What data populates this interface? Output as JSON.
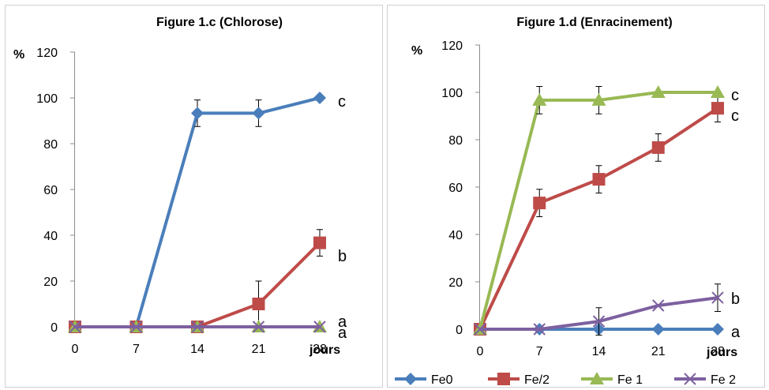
{
  "colors": {
    "Fe0": "#4a7ebb",
    "Fe/2": "#be4b48",
    "Fe 1": "#98b954",
    "Fe 2": "#7d60a0"
  },
  "legend": [
    {
      "name": "Fe0",
      "marker": "diamond"
    },
    {
      "name": "Fe/2",
      "marker": "square"
    },
    {
      "name": "Fe 1",
      "marker": "triangle"
    },
    {
      "name": "Fe 2",
      "marker": "x"
    }
  ],
  "chart_data": [
    {
      "type": "line",
      "title": "Figure 1.c (Chlorose)",
      "ylabel": "%",
      "xlabel": "jours",
      "x": [
        0,
        7,
        14,
        21,
        28
      ],
      "x_ticks": [
        "0",
        "7",
        "14",
        "21",
        "28"
      ],
      "ylim": [
        0,
        120
      ],
      "y_ticks": [
        "0",
        "20",
        "40",
        "60",
        "80",
        "100",
        "120"
      ],
      "grid": false,
      "series": [
        {
          "name": "Fe0",
          "values": [
            0,
            0,
            93.3,
            93.3,
            100
          ],
          "errors": [
            0,
            0,
            5.8,
            5.8,
            0
          ]
        },
        {
          "name": "Fe/2",
          "values": [
            0,
            0,
            0,
            10,
            36.7
          ],
          "errors": [
            0,
            0,
            0,
            10,
            5.8
          ]
        },
        {
          "name": "Fe 1",
          "values": [
            0,
            0,
            0,
            0,
            0
          ],
          "errors": [
            0,
            0,
            0,
            0,
            0
          ]
        },
        {
          "name": "Fe 2",
          "values": [
            0,
            0,
            0,
            0,
            0
          ],
          "errors": [
            0,
            0,
            0,
            0,
            0
          ]
        }
      ],
      "annotations": [
        {
          "text": "c",
          "x": 28,
          "y": 100
        },
        {
          "text": "b",
          "x": 28,
          "y": 30
        },
        {
          "text": "a",
          "x": 28,
          "y": 2
        },
        {
          "text": "a",
          "x": 28,
          "y": -4
        }
      ]
    },
    {
      "type": "line",
      "title": "Figure 1.d (Enracinement)",
      "ylabel": "%",
      "xlabel": "jours",
      "x": [
        0,
        7,
        14,
        21,
        28
      ],
      "x_ticks": [
        "0",
        "7",
        "14",
        "21",
        "28"
      ],
      "ylim": [
        0,
        120
      ],
      "y_ticks": [
        "0",
        "20",
        "40",
        "60",
        "80",
        "100",
        "120"
      ],
      "grid": false,
      "legend_position": "bottom",
      "series": [
        {
          "name": "Fe0",
          "values": [
            0,
            0,
            0,
            0,
            0
          ],
          "errors": [
            0,
            0,
            0,
            0,
            0
          ]
        },
        {
          "name": "Fe/2",
          "values": [
            0,
            53.3,
            63.3,
            76.7,
            93.3
          ],
          "errors": [
            0,
            5.8,
            5.8,
            5.8,
            5.8
          ]
        },
        {
          "name": "Fe 1",
          "values": [
            0,
            96.7,
            96.7,
            100,
            100
          ],
          "errors": [
            0,
            5.8,
            5.8,
            0,
            0
          ]
        },
        {
          "name": "Fe 2",
          "values": [
            0,
            0,
            3.3,
            10,
            13.3
          ],
          "errors": [
            0,
            0,
            5.8,
            0,
            5.8
          ]
        }
      ],
      "annotations": [
        {
          "text": "c",
          "x": 28,
          "y": 100
        },
        {
          "text": "c",
          "x": 28,
          "y": 91
        },
        {
          "text": "b",
          "x": 28,
          "y": 13
        },
        {
          "text": "a",
          "x": 28,
          "y": -1
        }
      ]
    }
  ]
}
